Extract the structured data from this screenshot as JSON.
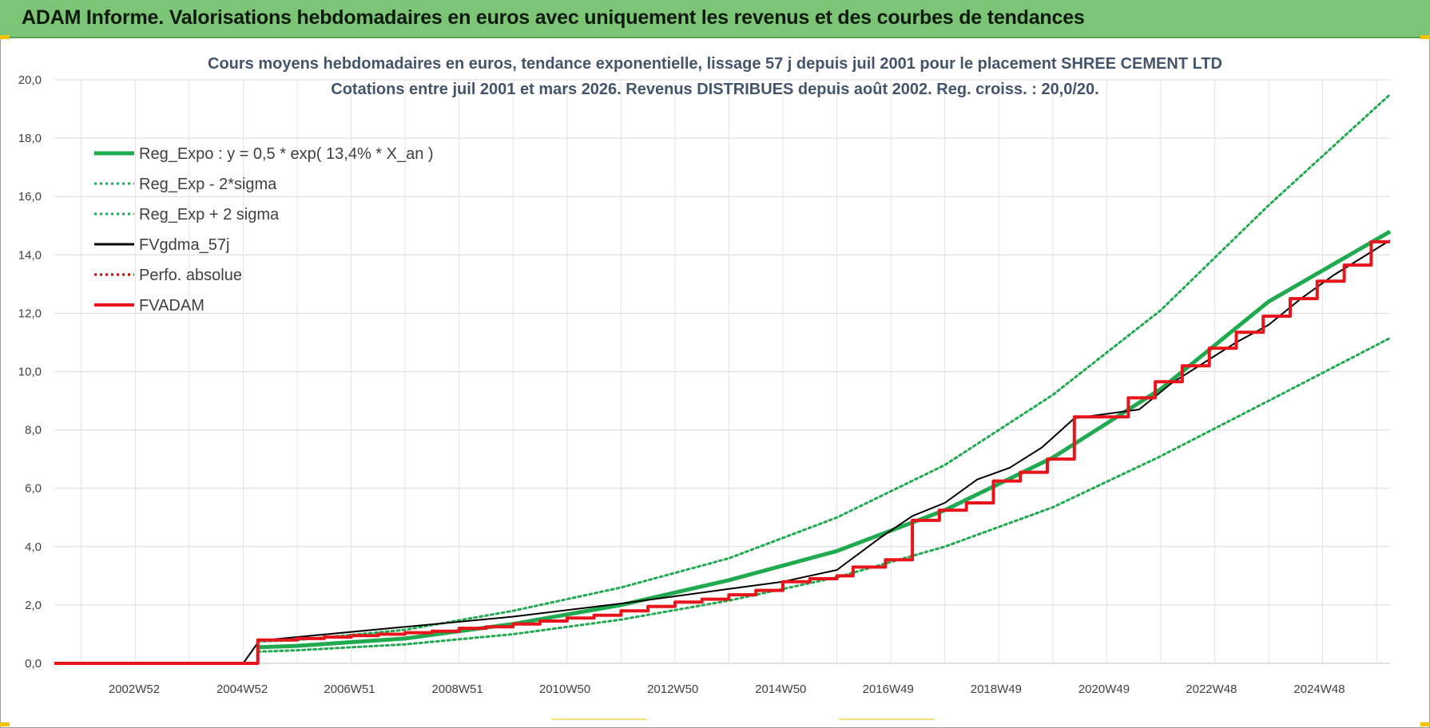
{
  "banner": {
    "title": "ADAM Informe. Valorisations hebdomadaires en euros avec uniquement les revenus et des courbes de tendances"
  },
  "chart_data": {
    "type": "line",
    "title": "Cours moyens hebdomadaires en euros, tendance exponentielle, lissage 57 j depuis juil 2001 pour le placement SHREE CEMENT LTD",
    "subtitle": "Cotations entre juil 2001 et mars 2026. Revenus DISTRIBUES depuis août 2002. Reg. croiss. : 20,0/20.",
    "xlabel": "",
    "ylabel": "",
    "ylim": [
      0,
      20
    ],
    "xlim": [
      2001.5,
      2026.25
    ],
    "y_ticks": [
      "0,0",
      "2,0",
      "4,0",
      "6,0",
      "8,0",
      "10,0",
      "12,0",
      "14,0",
      "16,0",
      "18,0",
      "20,0"
    ],
    "x_tick_labels": [
      {
        "label": "2002W52",
        "x": 2002.98
      },
      {
        "label": "2004W52",
        "x": 2004.98
      },
      {
        "label": "2006W51",
        "x": 2006.97
      },
      {
        "label": "2008W51",
        "x": 2008.97
      },
      {
        "label": "2010W50",
        "x": 2010.96
      },
      {
        "label": "2012W50",
        "x": 2012.96
      },
      {
        "label": "2014W50",
        "x": 2014.96
      },
      {
        "label": "2016W49",
        "x": 2016.95
      },
      {
        "label": "2018W49",
        "x": 2018.95
      },
      {
        "label": "2020W49",
        "x": 2020.95
      },
      {
        "label": "2022W48",
        "x": 2022.94
      },
      {
        "label": "2024W48",
        "x": 2024.94
      }
    ],
    "grid": true,
    "legend_position": "top-left",
    "series": [
      {
        "name": "Reg_Expo : y = 0,5 * exp( 13,4% *  X_an )",
        "color": "#1faa4f",
        "style": "solid-thick",
        "x": [
          2005.27,
          2006.0,
          2008.0,
          2010.0,
          2012.0,
          2014.0,
          2016.0,
          2018.0,
          2020.0,
          2022.0,
          2024.0,
          2026.25
        ],
        "y": [
          0.55,
          0.6,
          0.85,
          1.35,
          2.0,
          2.85,
          3.85,
          5.25,
          7.05,
          9.4,
          12.4,
          14.8
        ]
      },
      {
        "name": "Reg_Exp - 2*sigma",
        "color": "#1faa4f",
        "style": "dotted",
        "x": [
          2005.27,
          2006.0,
          2008.0,
          2010.0,
          2012.0,
          2014.0,
          2016.0,
          2018.0,
          2020.0,
          2022.0,
          2024.0,
          2026.25
        ],
        "y": [
          0.4,
          0.45,
          0.65,
          1.0,
          1.5,
          2.15,
          2.95,
          4.0,
          5.35,
          7.1,
          9.0,
          11.15
        ]
      },
      {
        "name": "Reg_Exp + 2 sigma",
        "color": "#1faa4f",
        "style": "dotted",
        "x": [
          2005.27,
          2006.0,
          2008.0,
          2010.0,
          2012.0,
          2014.0,
          2016.0,
          2018.0,
          2020.0,
          2022.0,
          2024.0,
          2026.25
        ],
        "y": [
          0.75,
          0.8,
          1.15,
          1.8,
          2.6,
          3.6,
          5.0,
          6.8,
          9.2,
          12.1,
          15.7,
          19.5
        ]
      },
      {
        "name": "FVgdma_57j",
        "color": "#000000",
        "style": "solid",
        "x": [
          2001.5,
          2005.0,
          2005.3,
          2008.0,
          2010.0,
          2012.0,
          2014.0,
          2015.0,
          2016.0,
          2016.8,
          2017.4,
          2018.0,
          2018.6,
          2019.2,
          2019.8,
          2020.4,
          2021.6,
          2022.2,
          2022.8,
          2023.4,
          2024.0,
          2024.6,
          2025.2,
          2026.25
        ],
        "y": [
          0.0,
          0.0,
          0.78,
          1.25,
          1.6,
          2.05,
          2.55,
          2.8,
          3.2,
          4.3,
          5.05,
          5.5,
          6.3,
          6.7,
          7.4,
          8.4,
          8.7,
          9.6,
          10.3,
          11.0,
          11.6,
          12.5,
          13.3,
          14.5
        ]
      },
      {
        "name": "Perfo. absolue",
        "color": "#cc0000",
        "style": "dotted",
        "x": [],
        "y": []
      },
      {
        "name": "FVADAM",
        "color": "#e8141b",
        "style": "step-thick",
        "x": [
          2001.5,
          2005.0,
          2005.27,
          2006.0,
          2006.5,
          2007.0,
          2007.5,
          2008.0,
          2008.5,
          2009.0,
          2009.5,
          2010.0,
          2010.5,
          2011.0,
          2011.5,
          2012.0,
          2012.5,
          2013.0,
          2013.5,
          2014.0,
          2014.5,
          2015.0,
          2015.5,
          2016.0,
          2016.3,
          2016.9,
          2017.4,
          2017.9,
          2018.4,
          2018.9,
          2019.4,
          2019.9,
          2020.4,
          2021.4,
          2021.9,
          2022.4,
          2022.9,
          2023.4,
          2023.9,
          2024.4,
          2024.9,
          2025.4,
          2025.9,
          2026.25
        ],
        "y": [
          0.0,
          0.0,
          0.8,
          0.85,
          0.9,
          0.95,
          1.0,
          1.05,
          1.1,
          1.2,
          1.25,
          1.35,
          1.45,
          1.55,
          1.65,
          1.8,
          1.95,
          2.1,
          2.2,
          2.35,
          2.5,
          2.8,
          2.9,
          3.0,
          3.3,
          3.55,
          4.9,
          5.25,
          5.5,
          6.25,
          6.55,
          7.0,
          8.45,
          9.1,
          9.65,
          10.2,
          10.8,
          11.35,
          11.9,
          12.5,
          13.1,
          13.65,
          14.45,
          14.45
        ]
      }
    ]
  },
  "footer": {
    "labels": []
  }
}
